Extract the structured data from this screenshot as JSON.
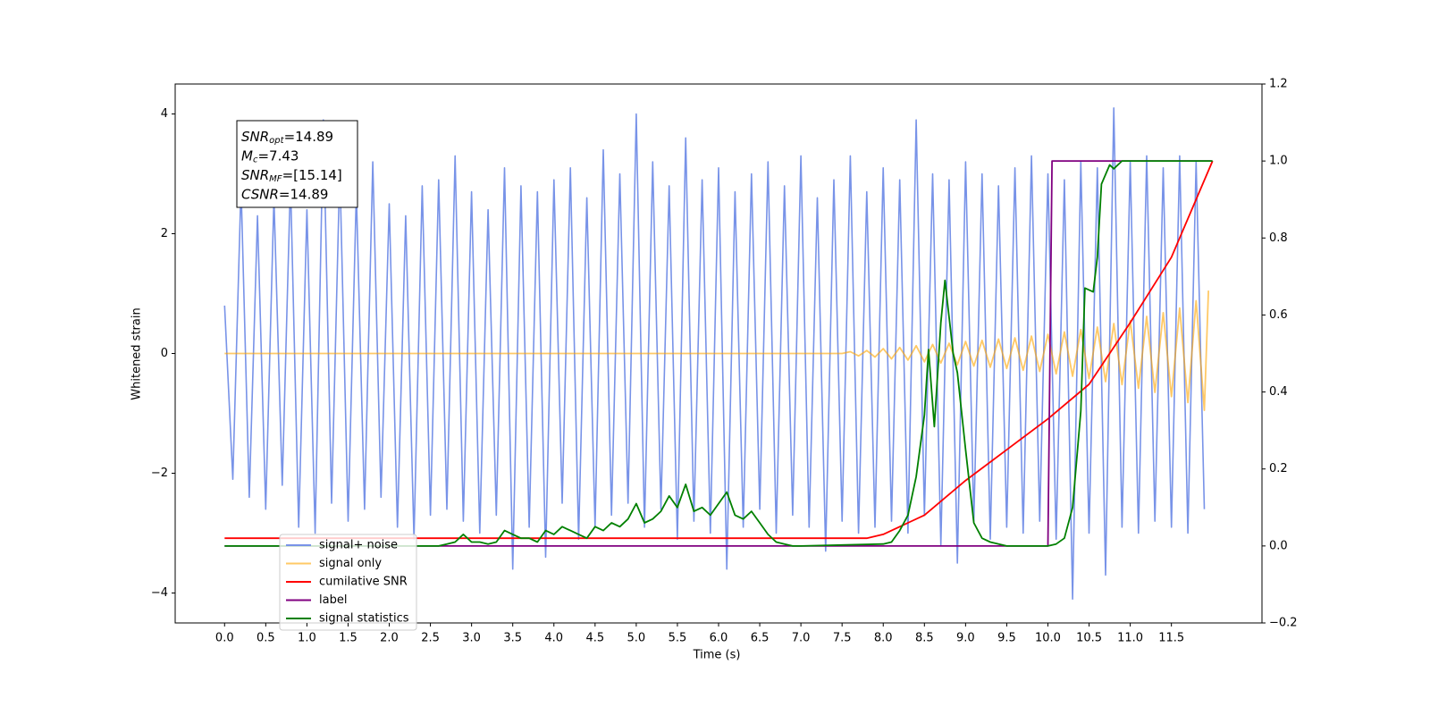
{
  "chart_data": {
    "type": "line",
    "xlabel": "Time (s)",
    "ylabel": "Whitened strain",
    "xlim": [
      -0.6,
      12.6
    ],
    "ylim": [
      -4.5,
      4.5
    ],
    "y2lim": [
      -0.2,
      1.2
    ],
    "xticks": [
      {
        "value": 0,
        "label": "0.0"
      },
      0.5,
      {
        "value": 1,
        "label": "1.0"
      },
      1.5,
      {
        "value": 2,
        "label": "2.0"
      },
      2.5,
      {
        "value": 3,
        "label": "3.0"
      },
      3.5,
      {
        "value": 4,
        "label": "4.0"
      },
      4.5,
      {
        "value": 5,
        "label": "5.0"
      },
      5.5,
      {
        "value": 6,
        "label": "6.0"
      },
      6.5,
      {
        "value": 7,
        "label": "7.0"
      },
      7.5,
      {
        "value": 8,
        "label": "8.0"
      },
      8.5,
      {
        "value": 9,
        "label": "9.0"
      },
      9.5,
      {
        "value": 10,
        "label": "10.0"
      },
      10.5,
      {
        "value": 11,
        "label": "11.0"
      },
      11.5
    ],
    "yticks": [
      {
        "value": -4,
        "label": "−4"
      },
      {
        "value": -2,
        "label": "−2"
      },
      0,
      2,
      4
    ],
    "y2ticks": [
      {
        "value": -0.2,
        "label": "−0.2"
      },
      {
        "value": 0,
        "label": "0.0"
      },
      0.2,
      0.4,
      0.6,
      0.8,
      {
        "value": 1,
        "label": "1.0"
      },
      1.2
    ],
    "annotation": [
      {
        "base": "SNR",
        "sub": "opt",
        "rest": "=14.89"
      },
      {
        "base": "M",
        "sub": "c",
        "rest": "=7.43"
      },
      {
        "base": "SNR",
        "sub": "MF",
        "rest": "=[15.14]"
      },
      {
        "base": "CSNR",
        "sub": "",
        "rest": "=14.89"
      }
    ],
    "series": [
      {
        "name": "signal+ noise",
        "color": "#7893e8",
        "axis": "y",
        "x": [
          0,
          0.1,
          0.2,
          0.3,
          0.4,
          0.5,
          0.6,
          0.7,
          0.8,
          0.9,
          1,
          1.1,
          1.2,
          1.3,
          1.4,
          1.5,
          1.6,
          1.7,
          1.8,
          1.9,
          2,
          2.1,
          2.2,
          2.3,
          2.4,
          2.5,
          2.6,
          2.7,
          2.8,
          2.9,
          3,
          3.1,
          3.2,
          3.3,
          3.4,
          3.5,
          3.6,
          3.7,
          3.8,
          3.9,
          4,
          4.1,
          4.2,
          4.3,
          4.4,
          4.5,
          4.6,
          4.7,
          4.8,
          4.9,
          5,
          5.1,
          5.2,
          5.3,
          5.4,
          5.5,
          5.6,
          5.7,
          5.8,
          5.9,
          6,
          6.1,
          6.2,
          6.3,
          6.4,
          6.5,
          6.6,
          6.7,
          6.8,
          6.9,
          7,
          7.1,
          7.2,
          7.3,
          7.4,
          7.5,
          7.6,
          7.7,
          7.8,
          7.9,
          8,
          8.1,
          8.2,
          8.3,
          8.4,
          8.5,
          8.6,
          8.7,
          8.8,
          8.9,
          9,
          9.1,
          9.2,
          9.3,
          9.4,
          9.5,
          9.6,
          9.7,
          9.8,
          9.9,
          10,
          10.1,
          10.2,
          10.3,
          10.4,
          10.5,
          10.6,
          10.7,
          10.8,
          10.9,
          11,
          11.1,
          11.2,
          11.3,
          11.4,
          11.5,
          11.6,
          11.7,
          11.8,
          11.9
        ],
        "values": [
          0.8,
          -2.1,
          2.8,
          -2.4,
          2.3,
          -2.6,
          2.6,
          -2.2,
          2.9,
          -2.9,
          2.4,
          -3.0,
          3.9,
          -2.5,
          3.1,
          -2.8,
          2.7,
          -2.6,
          3.2,
          -2.4,
          2.5,
          -2.9,
          2.3,
          -3.1,
          2.8,
          -2.7,
          2.9,
          -2.6,
          3.3,
          -2.8,
          2.7,
          -3.0,
          2.4,
          -2.7,
          3.1,
          -3.6,
          2.8,
          -2.9,
          2.7,
          -3.4,
          2.9,
          -2.5,
          3.1,
          -3.1,
          2.6,
          -2.9,
          3.4,
          -2.7,
          3.0,
          -2.5,
          4.0,
          -2.9,
          3.2,
          -2.6,
          2.8,
          -3.1,
          3.6,
          -2.8,
          2.9,
          -3.0,
          3.1,
          -3.6,
          2.7,
          -2.9,
          3.0,
          -2.6,
          3.2,
          -3.0,
          2.8,
          -2.7,
          3.3,
          -2.9,
          2.6,
          -3.3,
          2.9,
          -2.8,
          3.3,
          -3.0,
          2.7,
          -2.9,
          3.1,
          -2.8,
          2.9,
          -3.0,
          3.9,
          -2.7,
          3.0,
          -3.2,
          2.9,
          -3.5,
          3.2,
          -2.8,
          3.0,
          -3.1,
          2.8,
          -2.9,
          3.1,
          -3.0,
          3.3,
          -2.8,
          3.0,
          -3.1,
          2.9,
          -4.1,
          3.2,
          -3.0,
          3.1,
          -3.7,
          4.1,
          -2.9,
          3.2,
          -3.0,
          3.3,
          -2.8,
          3.1,
          -2.9,
          3.3,
          -3.0,
          3.2,
          -2.6
        ]
      },
      {
        "name": "signal only",
        "color": "#ffa500",
        "axis": "y",
        "x": [
          0,
          7.5,
          7.6,
          7.7,
          7.8,
          7.9,
          8,
          8.1,
          8.2,
          8.3,
          8.4,
          8.5,
          8.6,
          8.7,
          8.8,
          8.9,
          9,
          9.1,
          9.2,
          9.3,
          9.4,
          9.5,
          9.6,
          9.7,
          9.8,
          9.9,
          10,
          10.1,
          10.2,
          10.3,
          10.4,
          10.5,
          10.6,
          10.7,
          10.8,
          10.9,
          11,
          11.1,
          11.2,
          11.3,
          11.4,
          11.5,
          11.6,
          11.7,
          11.8,
          11.9,
          11.95
        ],
        "values": [
          0,
          0,
          0.03,
          -0.04,
          0.05,
          -0.06,
          0.08,
          -0.09,
          0.1,
          -0.11,
          0.13,
          -0.14,
          0.15,
          -0.16,
          0.17,
          -0.19,
          0.2,
          -0.21,
          0.22,
          -0.23,
          0.24,
          -0.25,
          0.26,
          -0.28,
          0.29,
          -0.3,
          0.32,
          -0.34,
          0.36,
          -0.38,
          0.4,
          -0.42,
          0.44,
          -0.47,
          0.5,
          -0.52,
          0.55,
          -0.58,
          0.62,
          -0.65,
          0.68,
          -0.72,
          0.76,
          -0.82,
          0.88,
          -0.95,
          1.05
        ]
      },
      {
        "name": "cumilative SNR",
        "color": "#ff0000",
        "axis": "y2",
        "x": [
          0,
          7.8,
          8,
          8.5,
          9,
          9.5,
          10,
          10.5,
          11,
          11.5,
          12
        ],
        "values": [
          0.02,
          0.02,
          0.03,
          0.08,
          0.17,
          0.25,
          0.33,
          0.42,
          0.58,
          0.75,
          1.0
        ]
      },
      {
        "name": "label",
        "color": "#800080",
        "axis": "y2",
        "x": [
          0,
          10,
          10.05,
          11.99
        ],
        "values": [
          0,
          0,
          1,
          1
        ]
      },
      {
        "name": "signal statistics",
        "color": "#008000",
        "axis": "y2",
        "x": [
          0,
          2.4,
          2.5,
          2.6,
          2.7,
          2.8,
          2.9,
          3,
          3.1,
          3.2,
          3.3,
          3.4,
          3.5,
          3.6,
          3.7,
          3.8,
          3.9,
          4,
          4.1,
          4.2,
          4.3,
          4.4,
          4.5,
          4.6,
          4.7,
          4.8,
          4.9,
          5,
          5.1,
          5.2,
          5.3,
          5.4,
          5.5,
          5.6,
          5.7,
          5.8,
          5.9,
          6,
          6.1,
          6.2,
          6.3,
          6.4,
          6.5,
          6.6,
          6.7,
          6.8,
          6.9,
          7,
          8,
          8.1,
          8.2,
          8.3,
          8.4,
          8.5,
          8.55,
          8.62,
          8.7,
          8.75,
          8.85,
          8.9,
          9,
          9.1,
          9.2,
          9.3,
          9.5,
          10,
          10.1,
          10.2,
          10.3,
          10.4,
          10.45,
          10.55,
          10.6,
          10.65,
          10.75,
          10.8,
          10.9,
          11,
          12
        ],
        "values": [
          0,
          0,
          0,
          0,
          0.005,
          0.01,
          0.03,
          0.01,
          0.01,
          0.005,
          0.01,
          0.04,
          0.03,
          0.02,
          0.02,
          0.01,
          0.04,
          0.03,
          0.05,
          0.04,
          0.03,
          0.02,
          0.05,
          0.04,
          0.06,
          0.05,
          0.07,
          0.11,
          0.06,
          0.07,
          0.09,
          0.13,
          0.1,
          0.16,
          0.09,
          0.1,
          0.08,
          0.11,
          0.14,
          0.08,
          0.07,
          0.09,
          0.06,
          0.03,
          0.01,
          0.005,
          0,
          0,
          0.005,
          0.01,
          0.04,
          0.08,
          0.18,
          0.34,
          0.51,
          0.31,
          0.58,
          0.69,
          0.5,
          0.45,
          0.25,
          0.06,
          0.02,
          0.01,
          0,
          0,
          0.005,
          0.02,
          0.1,
          0.35,
          0.67,
          0.66,
          0.75,
          0.94,
          0.99,
          0.98,
          1.0,
          1.0,
          1.0
        ]
      }
    ]
  }
}
